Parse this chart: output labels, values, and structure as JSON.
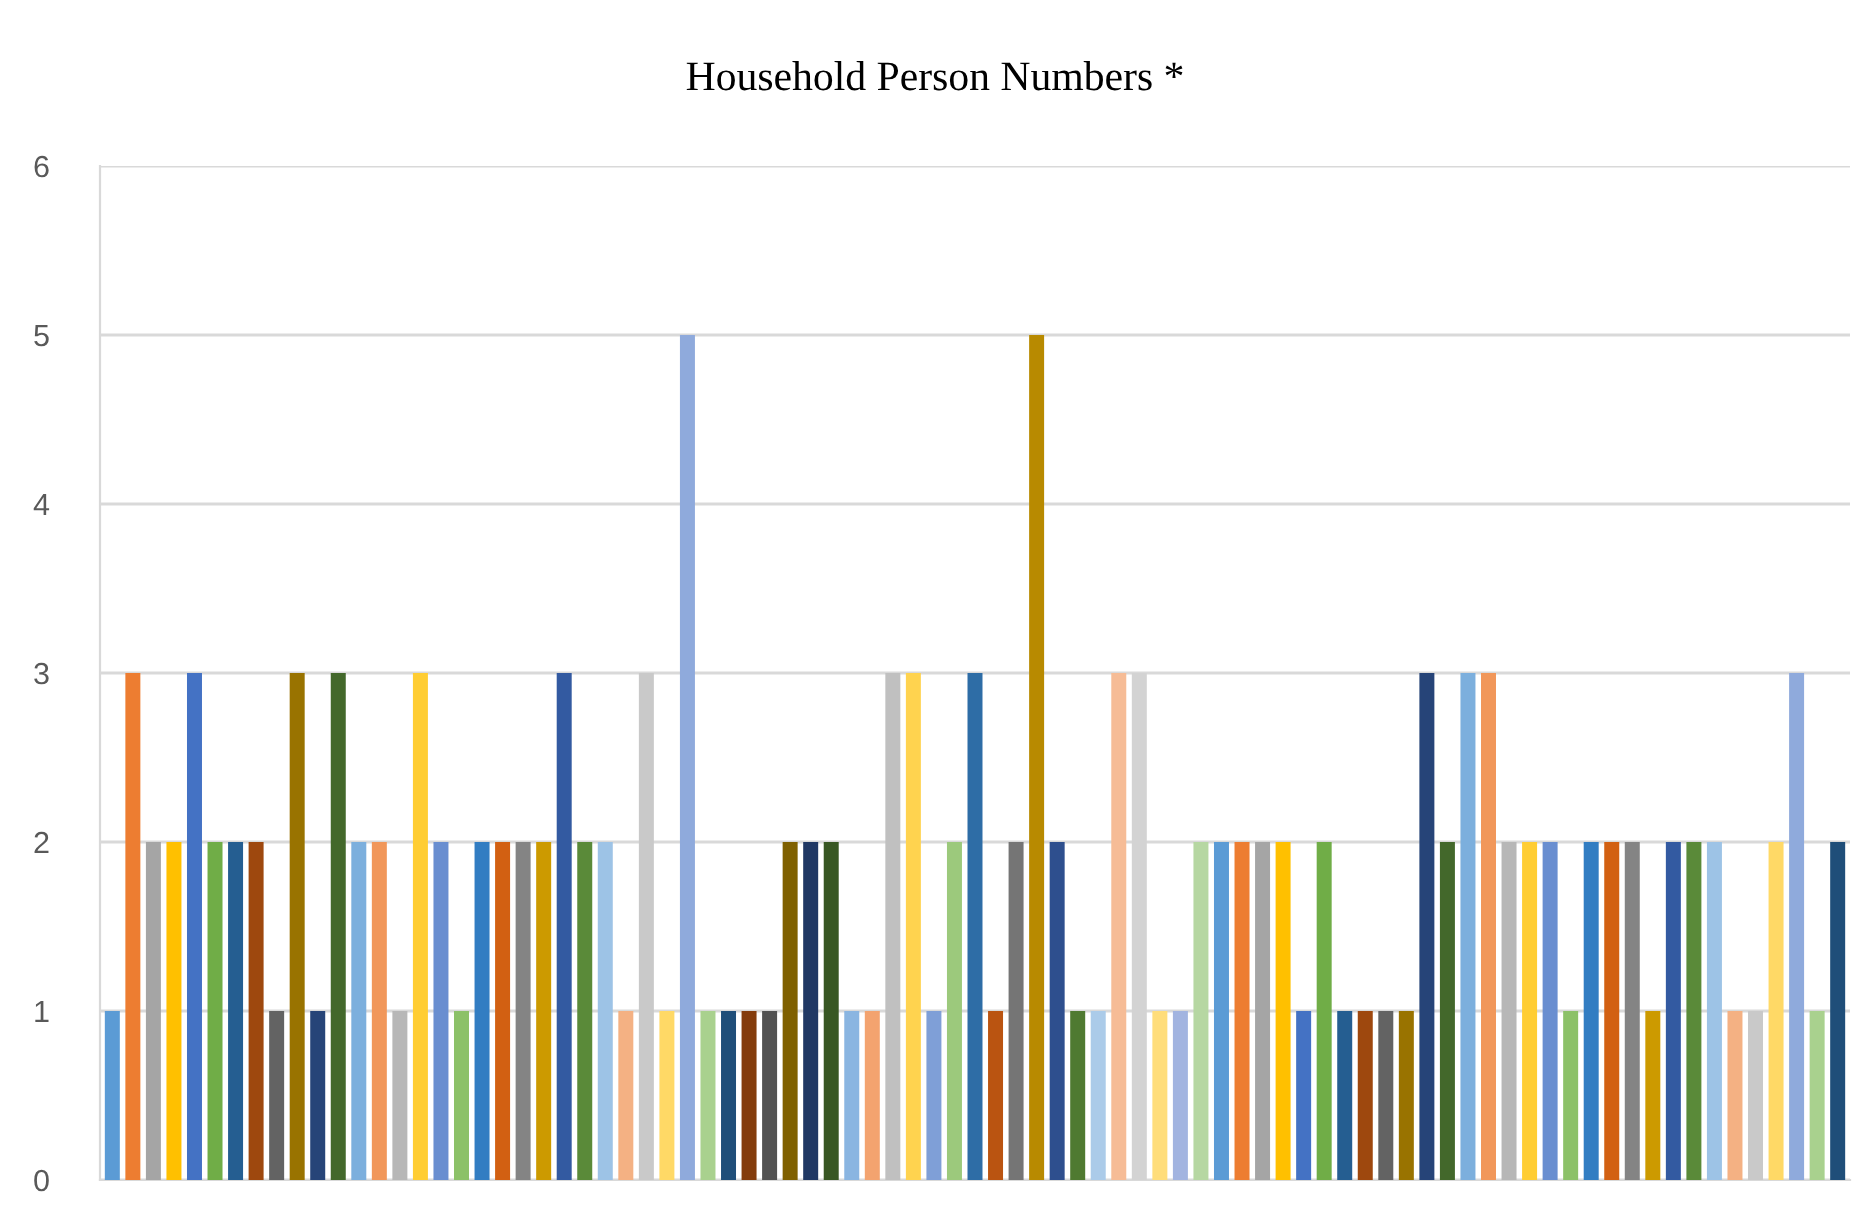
{
  "chart_data": {
    "type": "bar",
    "title": "Household Person Numbers *",
    "categories": [
      null,
      null,
      null,
      null,
      null,
      null,
      null,
      null,
      null,
      null,
      null,
      null,
      null,
      null,
      null,
      null,
      null,
      null,
      null,
      null,
      null,
      null,
      null,
      null,
      null,
      null,
      null,
      null,
      null,
      null,
      null,
      null,
      null,
      null,
      null,
      null,
      null,
      null,
      null,
      null,
      null,
      null,
      null,
      null,
      null,
      null,
      null,
      null,
      null,
      null,
      null,
      null,
      null,
      null,
      null,
      null,
      null,
      null,
      null,
      null,
      null,
      null,
      null,
      null,
      null,
      null,
      null,
      null,
      null,
      null,
      null,
      null,
      null,
      null,
      null,
      null,
      null,
      null,
      null,
      null,
      null,
      null,
      null,
      null,
      null
    ],
    "values": [
      1,
      3,
      2,
      2,
      3,
      2,
      2,
      2,
      1,
      3,
      1,
      3,
      2,
      2,
      1,
      3,
      2,
      1,
      2,
      2,
      2,
      2,
      3,
      2,
      2,
      1,
      3,
      1,
      5,
      1,
      1,
      1,
      1,
      2,
      2,
      2,
      1,
      1,
      3,
      3,
      1,
      2,
      3,
      1,
      2,
      5,
      2,
      1,
      1,
      3,
      3,
      1,
      1,
      2,
      2,
      2,
      2,
      2,
      1,
      2,
      1,
      1,
      1,
      1,
      3,
      2,
      3,
      3,
      2,
      2,
      2,
      1,
      2,
      2,
      2,
      1,
      2,
      2,
      2,
      1,
      1,
      2,
      3,
      1,
      2
    ],
    "colors": [
      "#5b9bd5",
      "#ed7d31",
      "#a5a5a5",
      "#ffc000",
      "#4472c4",
      "#70ad47",
      "#255e91",
      "#9e480e",
      "#636363",
      "#997300",
      "#264478",
      "#43682b",
      "#7cafdd",
      "#f1975a",
      "#b7b7b7",
      "#ffcd33",
      "#698ed0",
      "#8cc168",
      "#327dc2",
      "#d26012",
      "#848484",
      "#cc9a00",
      "#335aa1",
      "#5a8a39",
      "#9dc3e6",
      "#f4b183",
      "#c9c9c9",
      "#ffd966",
      "#8faadc",
      "#a9d18e",
      "#1f4e79",
      "#843c0c",
      "#525252",
      "#7f6000",
      "#203864",
      "#385723",
      "#8ab5e1",
      "#f3a36f",
      "#c0c0c0",
      "#ffd34f",
      "#7f9fd7",
      "#9cc97c",
      "#2e6da6",
      "#ba5411",
      "#757575",
      "#b88a00",
      "#2e4f8e",
      "#4f7a31",
      "#abcbe9",
      "#f6bc96",
      "#d3d3d3",
      "#ffdd7a",
      "#a2b4e0",
      "#b6d7a2",
      "#5b9bd5",
      "#ed7d31",
      "#a5a5a5",
      "#ffc000",
      "#4472c4",
      "#70ad47",
      "#255e91",
      "#9e480e",
      "#636363",
      "#997300",
      "#264478",
      "#43682b",
      "#7cafdd",
      "#f1975a",
      "#b7b7b7",
      "#ffcd33",
      "#698ed0",
      "#8cc168",
      "#327dc2",
      "#d26012",
      "#848484",
      "#cc9a00",
      "#335aa1",
      "#5a8a39",
      "#9dc3e6",
      "#f4b183",
      "#c9c9c9",
      "#ffd966",
      "#8faadc",
      "#a9d18e",
      "#1f4e79"
    ],
    "ylim": [
      0,
      6
    ],
    "yticks": [
      0,
      1,
      2,
      3,
      4,
      5,
      6
    ],
    "grid": "y"
  }
}
